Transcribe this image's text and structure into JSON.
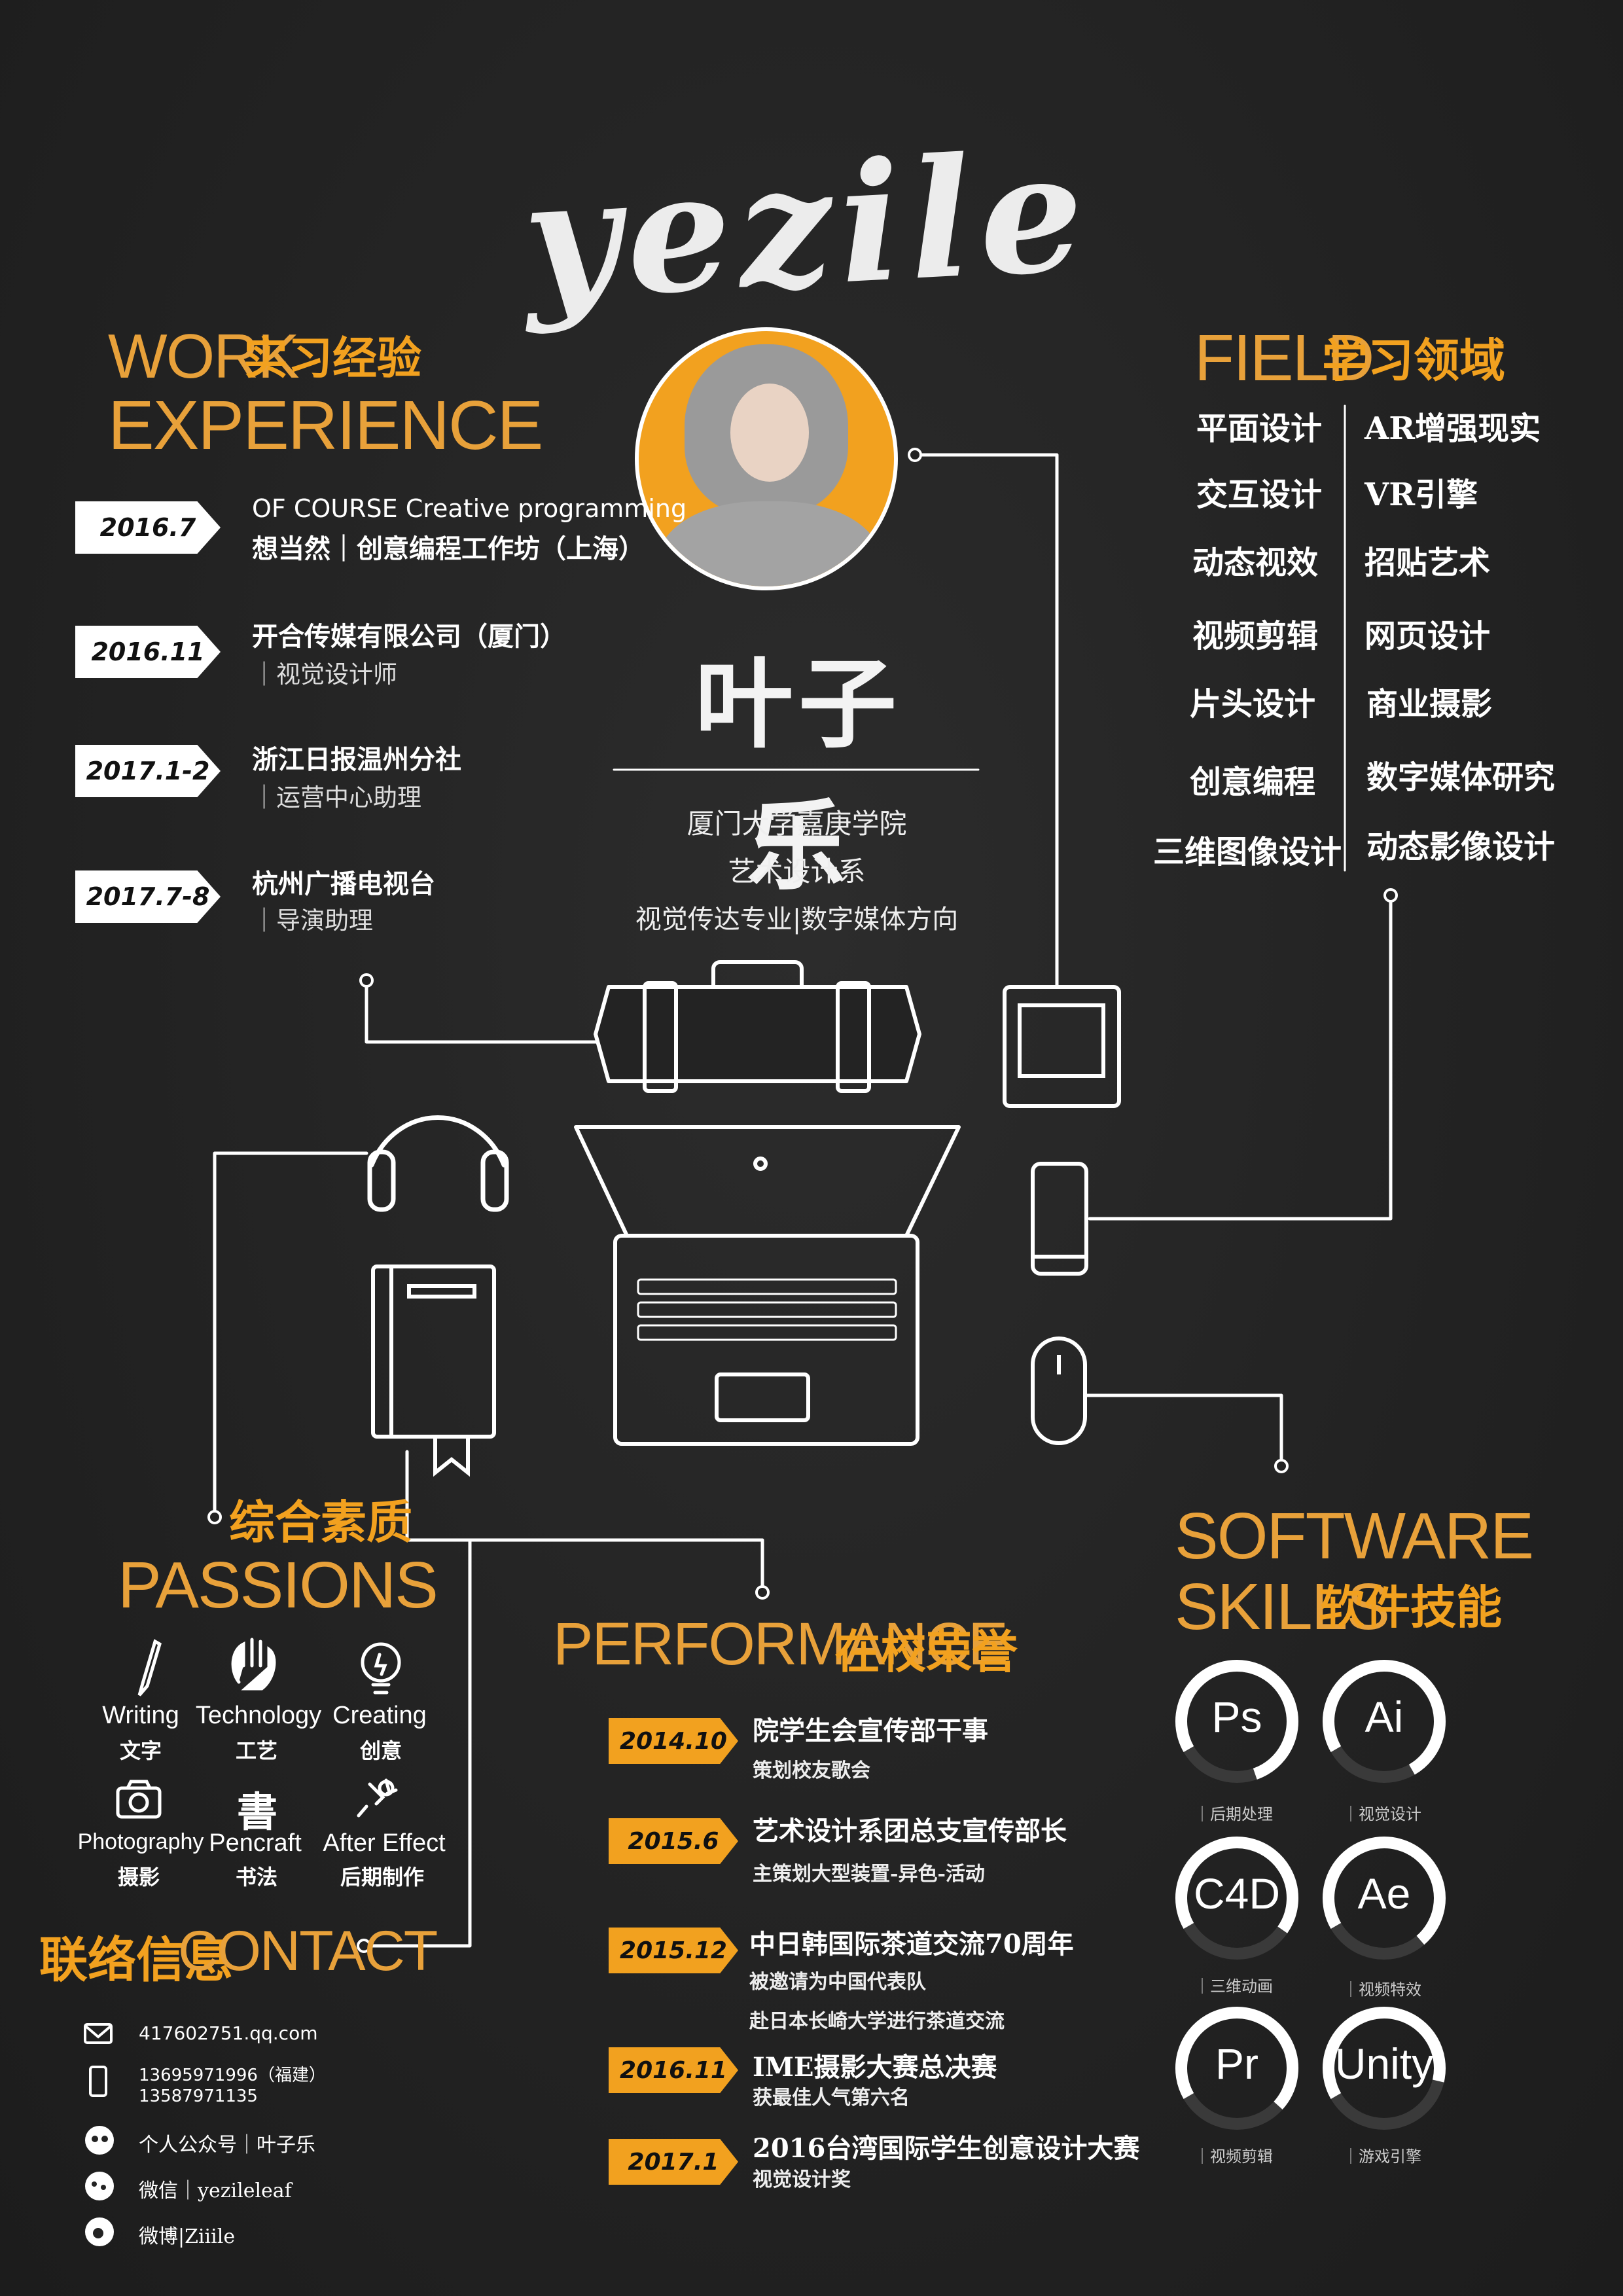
{
  "logo": "yezile",
  "name": "叶子乐",
  "school": {
    "line1": "厦门大学嘉庚学院",
    "line2": "艺术设计系",
    "line3": "视觉传达专业|数字媒体方向"
  },
  "work": {
    "heading_en1": "WORK",
    "heading_cn": "实习经验",
    "heading_en2": "EXPERIENCE",
    "items": [
      {
        "date": "2016.7",
        "title_en": "OF COURSE Creative programming",
        "title": "想当然｜创意编程工作坊（上海）",
        "sub": ""
      },
      {
        "date": "2016.11",
        "title_en": "",
        "title": "开合传媒有限公司（厦门）",
        "sub": "｜视觉设计师"
      },
      {
        "date": "2017.1-2",
        "title_en": "",
        "title": "浙江日报温州分社",
        "sub": "｜运营中心助理"
      },
      {
        "date": "2017.7-8",
        "title_en": "",
        "title": "杭州广播电视台",
        "sub": "｜导演助理"
      }
    ]
  },
  "field": {
    "heading_en": "FIELD",
    "heading_cn": "学习领域",
    "left": [
      "平面设计",
      "交互设计",
      "动态视效",
      "视频剪辑",
      "片头设计",
      "创意编程",
      "三维图像设计"
    ],
    "right": [
      "AR增强现实",
      "VR引擎",
      "招贴艺术",
      "网页设计",
      "商业摄影",
      "数字媒体研究",
      "动态影像设计"
    ]
  },
  "passions": {
    "heading_cn": "综合素质",
    "heading_en": "PASSIONS",
    "items": [
      {
        "en": "Writing",
        "cn": "文字",
        "icon": "pencil-icon"
      },
      {
        "en": "Technology",
        "cn": "工艺",
        "icon": "hand-icon"
      },
      {
        "en": "Creating",
        "cn": "创意",
        "icon": "lightbulb-icon"
      },
      {
        "en": "Photography",
        "cn": "摄影",
        "icon": "camera-icon"
      },
      {
        "en": "Pencraft",
        "cn": "书法",
        "icon": "calligraphy-icon"
      },
      {
        "en": "After Effect",
        "cn": "后期制作",
        "icon": "magic-wand-icon"
      }
    ]
  },
  "contact": {
    "heading_cn": "联络信息",
    "heading_en": "CONTACT",
    "email": "417602751.qq.com",
    "phone1": "13695971996（福建）",
    "phone2": "13587971135",
    "wechat_public": "个人公众号｜叶子乐",
    "wechat": "微信｜yezileleaf",
    "weibo": "微博|Ziiile"
  },
  "performance": {
    "heading_en": "PERFORMANCE",
    "heading_cn": "在校荣誉",
    "items": [
      {
        "date": "2014.10",
        "title": "院学生会宣传部干事",
        "subs": [
          "策划校友歌会"
        ]
      },
      {
        "date": "2015.6",
        "title": "艺术设计系团总支宣传部长",
        "subs": [
          "主策划大型装置-异色-活动"
        ]
      },
      {
        "date": "2015.12",
        "title": "中日韩国际茶道交流70周年",
        "subs": [
          "被邀请为中国代表队",
          "赴日本长崎大学进行茶道交流"
        ]
      },
      {
        "date": "2016.11",
        "title": "IME摄影大赛总决赛",
        "subs": [
          "获最佳人气第六名"
        ]
      },
      {
        "date": "2017.1",
        "title": "2016台湾国际学生创意设计大赛",
        "subs": [
          "视觉设计奖"
        ]
      }
    ]
  },
  "software": {
    "heading_en1": "SOFTWARE",
    "heading_en2": "SKILLS",
    "heading_cn": "软件技能",
    "items": [
      {
        "name": "Ps",
        "label": "｜后期处理",
        "level": 0.78
      },
      {
        "name": "Ai",
        "label": "｜视觉设计",
        "level": 0.75
      },
      {
        "name": "C4D",
        "label": "｜三维动画",
        "level": 0.68
      },
      {
        "name": "Ae",
        "label": "｜视频特效",
        "level": 0.72
      },
      {
        "name": "Pr",
        "label": "｜视频剪辑",
        "level": 0.7
      },
      {
        "name": "Unity",
        "label": "｜游戏引擎",
        "level": 0.62
      }
    ]
  },
  "colors": {
    "accent": "#f2a11f",
    "background": "#232323",
    "line": "#ffffff"
  }
}
